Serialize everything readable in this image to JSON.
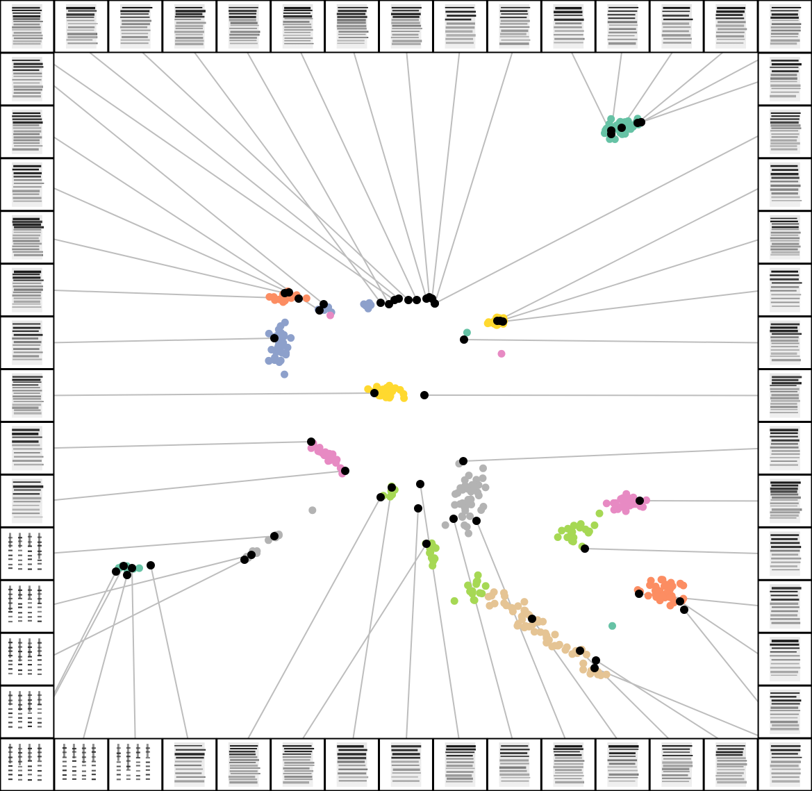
{
  "figure": {
    "thumbnail_rows": {
      "top": 15,
      "bottom": 15,
      "left": 13,
      "right": 13
    },
    "colors": {
      "teal": "#66c2a5",
      "orange": "#fc8d62",
      "blue": "#8da0cb",
      "pink": "#e78ac3",
      "lime": "#a6d854",
      "yellow": "#ffd92f",
      "tan": "#e5c494",
      "gray": "#b3b3b3",
      "exemplar": "#000000",
      "connector": "#bdbdbd"
    },
    "clusters": [
      {
        "id": "teal-top-right",
        "color": "teal"
      },
      {
        "id": "orange-left",
        "color": "orange"
      },
      {
        "id": "blue-arc",
        "color": "blue"
      },
      {
        "id": "yellow-right",
        "color": "yellow"
      },
      {
        "id": "yellow-center",
        "color": "yellow"
      },
      {
        "id": "pink-diagonal",
        "color": "pink"
      },
      {
        "id": "gray-central",
        "color": "gray"
      },
      {
        "id": "gray-left-streak",
        "color": "gray"
      },
      {
        "id": "teal-left",
        "color": "teal"
      },
      {
        "id": "pink-right",
        "color": "pink"
      },
      {
        "id": "lime-right",
        "color": "lime"
      },
      {
        "id": "lime-lower-streak",
        "color": "lime"
      },
      {
        "id": "tan-diagonal",
        "color": "tan"
      },
      {
        "id": "orange-right",
        "color": "orange"
      }
    ]
  }
}
